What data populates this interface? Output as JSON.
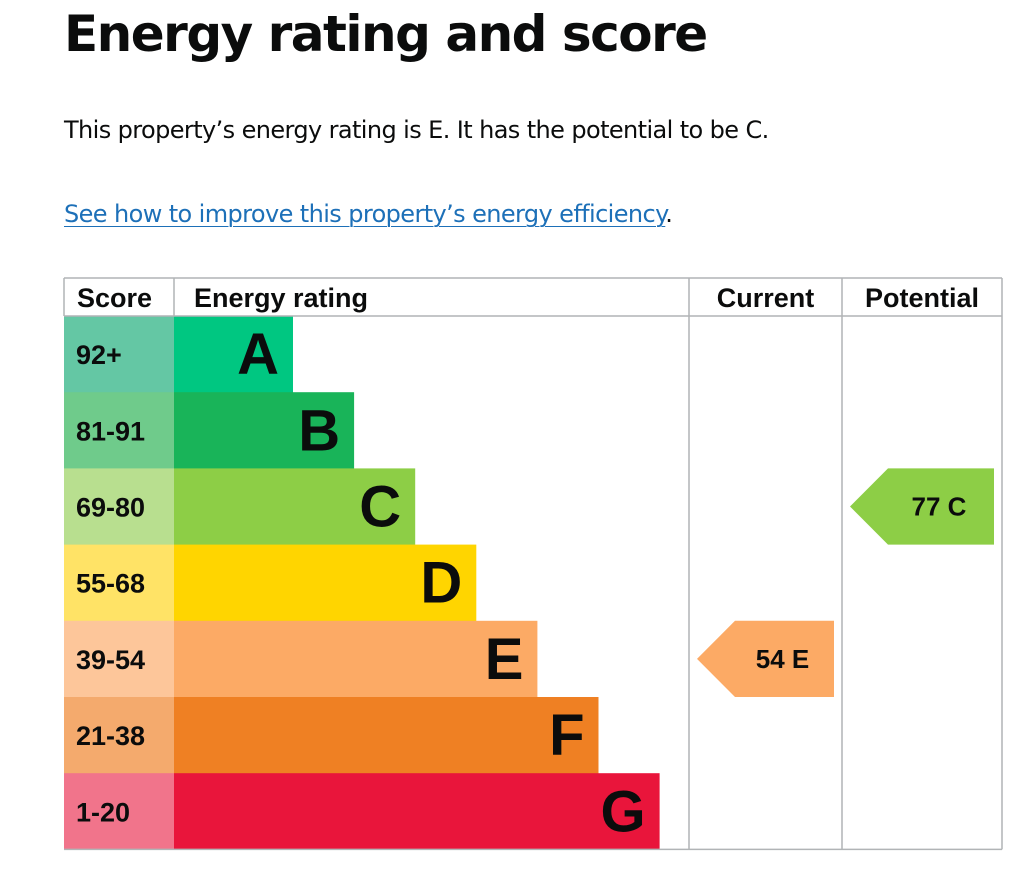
{
  "page": {
    "title": "Energy rating and score",
    "summary": "This property’s energy rating is E. It has the potential to be C.",
    "link_text": "See how to improve this property’s energy efficiency",
    "link_suffix": "."
  },
  "chart_data": {
    "type": "bar",
    "headers": {
      "score": "Score",
      "rating": "Energy rating",
      "current": "Current",
      "potential": "Potential"
    },
    "bands": [
      {
        "score": "92+",
        "letter": "A",
        "color": "#00c781",
        "score_color": "#64c7a4"
      },
      {
        "score": "81-91",
        "letter": "B",
        "color": "#19b459",
        "score_color": "#6fcb8b"
      },
      {
        "score": "69-80",
        "letter": "C",
        "color": "#8dce46",
        "score_color": "#b8df8f"
      },
      {
        "score": "55-68",
        "letter": "D",
        "color": "#ffd500",
        "score_color": "#ffe366"
      },
      {
        "score": "39-54",
        "letter": "E",
        "color": "#fcaa65",
        "score_color": "#fdc69a"
      },
      {
        "score": "21-38",
        "letter": "F",
        "color": "#ef8023",
        "score_color": "#f4aa6d"
      },
      {
        "score": "1-20",
        "letter": "G",
        "color": "#e9153b",
        "score_color": "#f1748b"
      }
    ],
    "current": {
      "value": 54,
      "letter": "E",
      "color": "#fcaa65"
    },
    "potential": {
      "value": 77,
      "letter": "C",
      "color": "#8dce46"
    }
  }
}
